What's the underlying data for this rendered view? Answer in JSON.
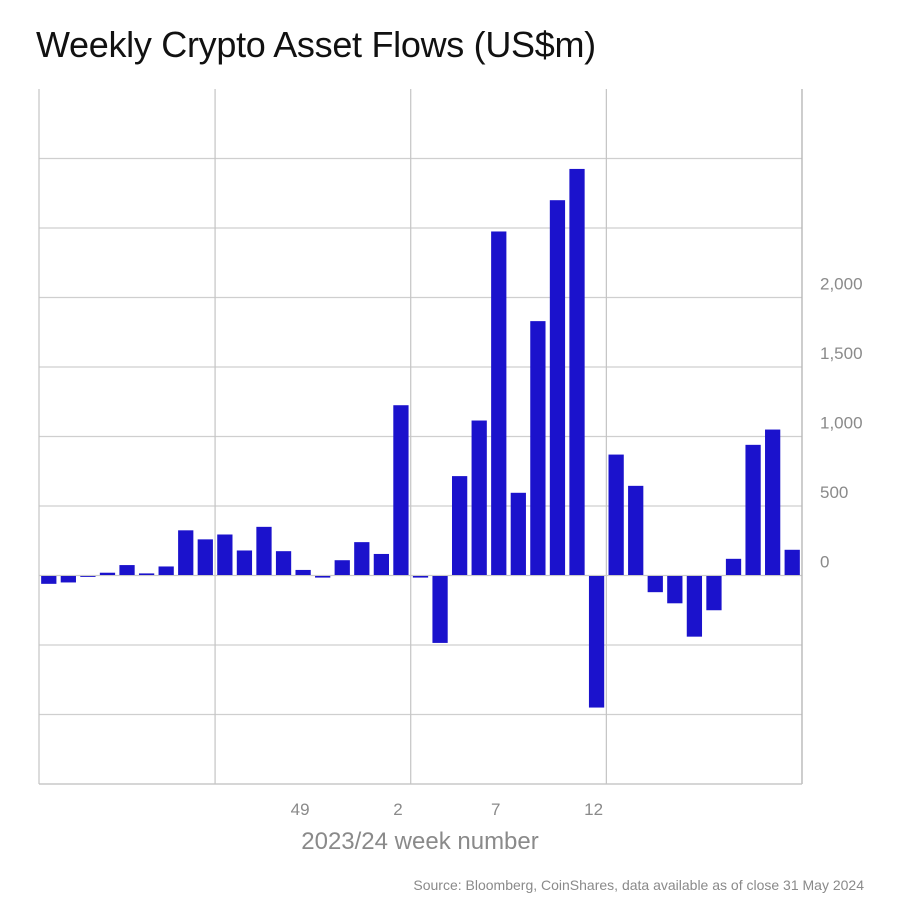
{
  "chart_data": {
    "type": "bar",
    "title": "Weekly Crypto Asset Flows (US$m)",
    "xlabel": "2023/24 week number",
    "ylabel": "",
    "source": "Source: Bloomberg, CoinShares, data available as of close 31 May 2024",
    "ylim": [
      -1500,
      3500
    ],
    "y_ticks": [
      {
        "value": 2000,
        "label": "2,000"
      },
      {
        "value": 1500,
        "label": "1,500"
      },
      {
        "value": 1000,
        "label": "1,000"
      },
      {
        "value": 500,
        "label": "500"
      },
      {
        "value": 0,
        "label": "0"
      }
    ],
    "y_gridlines": [
      3000,
      2500,
      2000,
      1500,
      1000,
      500,
      0,
      -500,
      -1000,
      -1500
    ],
    "x_ticks": [
      {
        "label": "49",
        "index": 13
      },
      {
        "label": "2",
        "index": 18
      },
      {
        "label": "7",
        "index": 23
      },
      {
        "label": "12",
        "index": 28
      }
    ],
    "x_vertical_gridlines_after_index": [
      8.5,
      18.5,
      28.5
    ],
    "bar_color": "#1b12cc",
    "values": [
      -60,
      -50,
      -10,
      20,
      75,
      15,
      65,
      325,
      260,
      295,
      180,
      350,
      175,
      40,
      -15,
      110,
      240,
      155,
      1225,
      -15,
      -485,
      715,
      1115,
      2475,
      595,
      1830,
      2700,
      2925,
      -950,
      870,
      645,
      -120,
      -200,
      -440,
      -250,
      120,
      940,
      1050,
      185
    ]
  }
}
